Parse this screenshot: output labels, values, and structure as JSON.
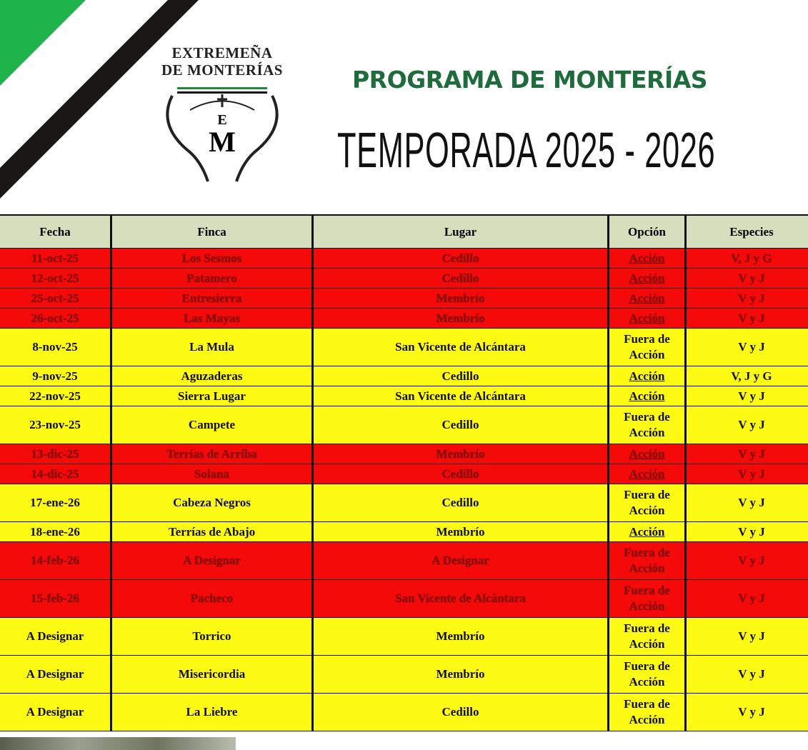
{
  "logo": {
    "line1": "EXTREMEÑA",
    "line2": "DE MONTERÍAS",
    "mono_top": "E",
    "mono_bottom": "M"
  },
  "header": {
    "programa": "PROGRAMA DE MONTERÍAS",
    "temporada": "TEMPORADA 2025 - 2026"
  },
  "colors": {
    "green": "#1e6b3c",
    "stripe_green": "#1db34a",
    "red_row": "#f50a0a",
    "yellow_row": "#fdfa13",
    "header_bg": "#d6dfbd"
  },
  "table": {
    "columns": [
      "Fecha",
      "Finca",
      "Lugar",
      "Opción",
      "Especies"
    ],
    "rows": [
      {
        "fecha": "11-oct-25",
        "finca": "Los Sesmos",
        "lugar": "Cedillo",
        "opcion": "Acción",
        "especies": "V, J y G",
        "color": "red"
      },
      {
        "fecha": "12-oct-25",
        "finca": "Patamero",
        "lugar": "Cedillo",
        "opcion": "Acción",
        "especies": "V y J",
        "color": "red"
      },
      {
        "fecha": "25-oct-25",
        "finca": "Entresierra",
        "lugar": "Membrío",
        "opcion": "Acción",
        "especies": "V y J",
        "color": "red"
      },
      {
        "fecha": "26-oct-25",
        "finca": "Las Mayas",
        "lugar": "Membrío",
        "opcion": "Acción",
        "especies": "V y J",
        "color": "red"
      },
      {
        "fecha": "8-nov-25",
        "finca": "La Mula",
        "lugar": "San Vicente de Alcántara",
        "opcion": "Fuera de Acción",
        "especies": "V y J",
        "color": "yellow"
      },
      {
        "fecha": "9-nov-25",
        "finca": "Aguzaderas",
        "lugar": "Cedillo",
        "opcion": "Acción",
        "especies": "V, J y G",
        "color": "yellow"
      },
      {
        "fecha": "22-nov-25",
        "finca": "Sierra Lugar",
        "lugar": "San Vicente de Alcántara",
        "opcion": "Acción",
        "especies": "V y J",
        "color": "yellow"
      },
      {
        "fecha": "23-nov-25",
        "finca": "Campete",
        "lugar": "Cedillo",
        "opcion": "Fuera de Acción",
        "especies": "V y J",
        "color": "yellow"
      },
      {
        "fecha": "13-dic-25",
        "finca": "Terrías de Arriba",
        "lugar": "Membrío",
        "opcion": "Acción",
        "especies": "V y J",
        "color": "red"
      },
      {
        "fecha": "14-dic-25",
        "finca": "Solana",
        "lugar": "Cedillo",
        "opcion": "Acción",
        "especies": "V y J",
        "color": "red"
      },
      {
        "fecha": "17-ene-26",
        "finca": "Cabeza Negros",
        "lugar": "Cedillo",
        "opcion": "Fuera de Acción",
        "especies": "V y J",
        "color": "yellow"
      },
      {
        "fecha": "18-ene-26",
        "finca": "Terrías de Abajo",
        "lugar": "Membrío",
        "opcion": "Acción",
        "especies": "V y J",
        "color": "yellow"
      },
      {
        "fecha": "14-feb-26",
        "finca": "A Designar",
        "lugar": "A Designar",
        "opcion": "Fuera de Acción",
        "especies": "V y J",
        "color": "red"
      },
      {
        "fecha": "15-feb-26",
        "finca": "Pacheco",
        "lugar": "San Vicente de Alcántara",
        "opcion": "Fuera de Acción",
        "especies": "V y J",
        "color": "red"
      },
      {
        "fecha": "A Designar",
        "finca": "Torrico",
        "lugar": "Membrío",
        "opcion": "Fuera de Acción",
        "especies": "V y J",
        "color": "yellow"
      },
      {
        "fecha": "A Designar",
        "finca": "Misericordia",
        "lugar": "Membrío",
        "opcion": "Fuera de Acción",
        "especies": "V y J",
        "color": "yellow"
      },
      {
        "fecha": "A Designar",
        "finca": "La Liebre",
        "lugar": "Cedillo",
        "opcion": "Fuera de Acción",
        "especies": "V y J",
        "color": "yellow"
      }
    ]
  }
}
